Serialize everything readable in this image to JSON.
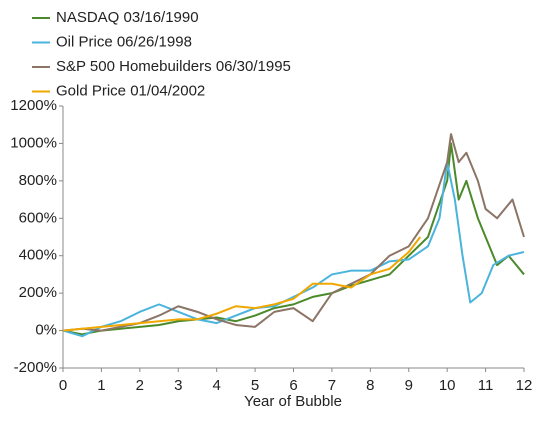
{
  "chart_data": {
    "type": "line",
    "xlabel": "Year of Bubble",
    "xlim": [
      0,
      12
    ],
    "xticks": [
      0,
      1,
      2,
      3,
      4,
      5,
      6,
      7,
      8,
      9,
      10,
      11,
      12
    ],
    "ylim": [
      -200,
      1200
    ],
    "yticks": [
      {
        "value": -200,
        "label": "-200%"
      },
      {
        "value": 0,
        "label": "0%"
      },
      {
        "value": 200,
        "label": "200%"
      },
      {
        "value": 400,
        "label": "400%"
      },
      {
        "value": 600,
        "label": "600%"
      },
      {
        "value": 800,
        "label": "800%"
      },
      {
        "value": 1000,
        "label": "1000%"
      },
      {
        "value": 1200,
        "label": "1200%"
      }
    ],
    "grid": false,
    "legend": "top-left",
    "series": [
      {
        "name": "NASDAQ  03/16/1990",
        "color": "#4a8a2a",
        "x": [
          0,
          0.5,
          1,
          1.5,
          2,
          2.5,
          3,
          3.5,
          4,
          4.5,
          5,
          5.5,
          6,
          6.5,
          7,
          7.5,
          8,
          8.5,
          9,
          9.5,
          10,
          10.1,
          10.3,
          10.5,
          10.8,
          11,
          11.3,
          11.6,
          12
        ],
        "values": [
          0,
          -20,
          0,
          10,
          20,
          30,
          50,
          60,
          70,
          50,
          80,
          120,
          140,
          180,
          200,
          240,
          270,
          300,
          400,
          500,
          800,
          1000,
          700,
          800,
          600,
          500,
          350,
          400,
          300
        ]
      },
      {
        "name": "Oil Price  06/26/1998",
        "color": "#4ab4dc",
        "x": [
          0,
          0.5,
          1,
          1.5,
          2,
          2.5,
          3,
          3.5,
          4,
          4.5,
          5,
          5.5,
          6,
          6.5,
          7,
          7.5,
          8,
          8.5,
          9,
          9.5,
          9.8,
          10,
          10.2,
          10.4,
          10.6,
          10.9,
          11.2,
          11.6,
          12
        ],
        "values": [
          0,
          -30,
          20,
          50,
          100,
          140,
          100,
          60,
          40,
          80,
          120,
          130,
          180,
          230,
          300,
          320,
          320,
          370,
          380,
          450,
          600,
          900,
          700,
          400,
          150,
          200,
          350,
          400,
          420
        ]
      },
      {
        "name": "S&P 500 Homebuilders  06/30/1995",
        "color": "#8c7466",
        "x": [
          0,
          0.5,
          1,
          1.5,
          2,
          2.5,
          3,
          3.5,
          4,
          4.5,
          5,
          5.5,
          6,
          6.5,
          7,
          7.5,
          8,
          8.5,
          9,
          9.5,
          10,
          10.1,
          10.3,
          10.5,
          10.8,
          11,
          11.3,
          11.7,
          12
        ],
        "values": [
          0,
          10,
          0,
          20,
          40,
          80,
          130,
          100,
          60,
          30,
          20,
          100,
          120,
          50,
          200,
          250,
          300,
          400,
          450,
          600,
          900,
          1050,
          900,
          950,
          800,
          650,
          600,
          700,
          500
        ]
      },
      {
        "name": "Gold Price  01/04/2002",
        "color": "#f0a800",
        "x": [
          0,
          0.5,
          1,
          1.5,
          2,
          2.5,
          3,
          3.5,
          4,
          4.5,
          5,
          5.5,
          6,
          6.5,
          7,
          7.5,
          8,
          8.5,
          9,
          9.3
        ],
        "values": [
          0,
          10,
          20,
          30,
          40,
          50,
          60,
          60,
          90,
          130,
          120,
          140,
          170,
          250,
          250,
          230,
          300,
          330,
          420,
          500
        ]
      }
    ]
  }
}
